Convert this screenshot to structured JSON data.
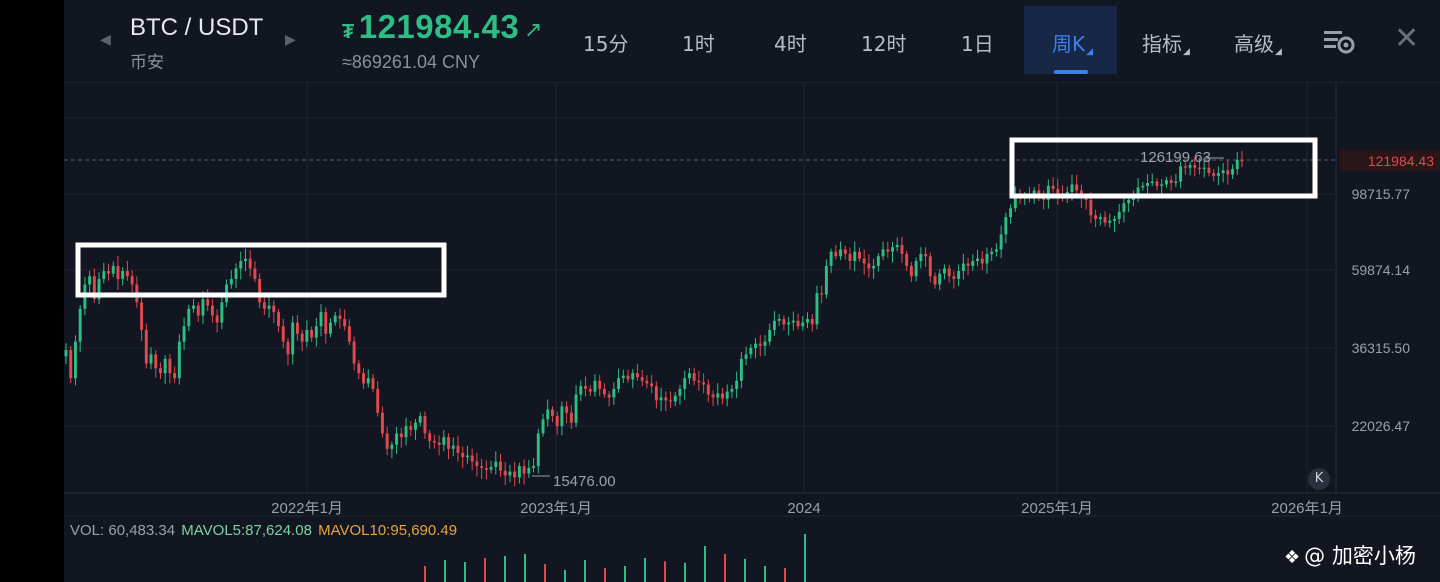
{
  "header": {
    "pair": "BTC / USDT",
    "exchange": "币安",
    "price_symbol": "₮",
    "price": "121984.43",
    "price_cny": "≈869261.04 CNY"
  },
  "tabs": [
    {
      "label": "15分",
      "active": false
    },
    {
      "label": "1时",
      "active": false
    },
    {
      "label": "4时",
      "active": false
    },
    {
      "label": "12时",
      "active": false
    },
    {
      "label": "1日",
      "active": false
    },
    {
      "label": "周K",
      "active": true
    },
    {
      "label": "指标",
      "active": false
    },
    {
      "label": "高级",
      "active": false
    }
  ],
  "colors": {
    "up": "#2ebd85",
    "down": "#e0494e",
    "accent": "#3d7ff0",
    "mavol5": "#7fd1a0",
    "mavol10": "#e8a33c"
  },
  "volume_legend": {
    "vol": "VOL: 60,483.34",
    "mavol5": "MAVOL5:87,624.08",
    "mavol10": "MAVOL10:95,690.49"
  },
  "watermark": "@ 加密小杨",
  "k_button": "K",
  "chart_data": {
    "type": "candlestick",
    "x_axis_labels": [
      "2022年1月",
      "2023年1月",
      "2024",
      "2025年1月",
      "2026年1月"
    ],
    "y_axis_labels": [
      "98715.77",
      "59874.14",
      "36315.50",
      "22026.47"
    ],
    "y_scale": "log",
    "current_price_label": "121984.43",
    "max_label": "126199.63",
    "min_label": "15476.00",
    "grid": true,
    "weekly_closes": [
      36000,
      30000,
      38000,
      47000,
      55000,
      58000,
      50000,
      57000,
      60000,
      59000,
      62000,
      57000,
      60000,
      58000,
      55000,
      49000,
      41000,
      33000,
      35000,
      32000,
      31000,
      34000,
      31000,
      30000,
      38000,
      42000,
      47000,
      48000,
      45000,
      50000,
      48000,
      45000,
      43000,
      49000,
      55000,
      57000,
      61000,
      64000,
      65000,
      61000,
      57000,
      49000,
      47000,
      48000,
      46000,
      42000,
      38000,
      35000,
      43000,
      40000,
      38000,
      41000,
      39000,
      42000,
      46000,
      40000,
      43000,
      45000,
      44000,
      42000,
      38000,
      33000,
      31000,
      29000,
      30000,
      28000,
      24000,
      21000,
      19000,
      19500,
      21000,
      20500,
      22000,
      21500,
      22500,
      23500,
      21000,
      20000,
      19800,
      19500,
      20500,
      19000,
      19400,
      18500,
      18000,
      18200,
      17500,
      17000,
      16800,
      16600,
      16900,
      17500,
      16500,
      16000,
      16400,
      15800,
      17000,
      16200,
      16800,
      17000,
      21000,
      23000,
      24500,
      23500,
      22000,
      25000,
      24000,
      22500,
      27000,
      28500,
      28000,
      27500,
      29500,
      28000,
      27000,
      26500,
      28000,
      30000,
      30500,
      29800,
      31000,
      30200,
      29500,
      29000,
      28500,
      26000,
      26500,
      26000,
      25800,
      26800,
      28000,
      30000,
      31000,
      29500,
      29200,
      28800,
      27000,
      26500,
      27200,
      26300,
      27500,
      28000,
      29500,
      34000,
      35000,
      36500,
      37500,
      37000,
      38000,
      41000,
      43500,
      44000,
      42500,
      43000,
      43500,
      42000,
      43000,
      44000,
      42500,
      52000,
      51500,
      62000,
      68000,
      66000,
      69000,
      67000,
      64000,
      68000,
      65000,
      63000,
      61000,
      62000,
      66000,
      69000,
      68000,
      70000,
      71000,
      67000,
      62000,
      58000,
      64000,
      67000,
      66000,
      58000,
      55000,
      59000,
      61000,
      58000,
      57000,
      60000,
      63000,
      62000,
      64000,
      65000,
      63000,
      67000,
      68000,
      69000,
      76000,
      85000,
      90000,
      98000,
      96000,
      98000,
      97000,
      101000,
      99000,
      95000,
      104000,
      102000,
      98000,
      97000,
      100000,
      105000,
      101000,
      96000,
      95000,
      86000,
      84000,
      85000,
      82000,
      83000,
      84000,
      88000,
      93000,
      95000,
      96000,
      103000,
      104000,
      106000,
      107000,
      104000,
      105000,
      108000,
      106000,
      107000,
      118000,
      117000,
      119000,
      117000,
      116000,
      117000,
      113000,
      111000,
      113000,
      115000,
      112000,
      116000,
      123000,
      121984
    ],
    "volume_approx": [
      40,
      55,
      50,
      60,
      65,
      70,
      45,
      30,
      55,
      35,
      40,
      60,
      52,
      48,
      90,
      70,
      58,
      40,
      35,
      120
    ]
  }
}
